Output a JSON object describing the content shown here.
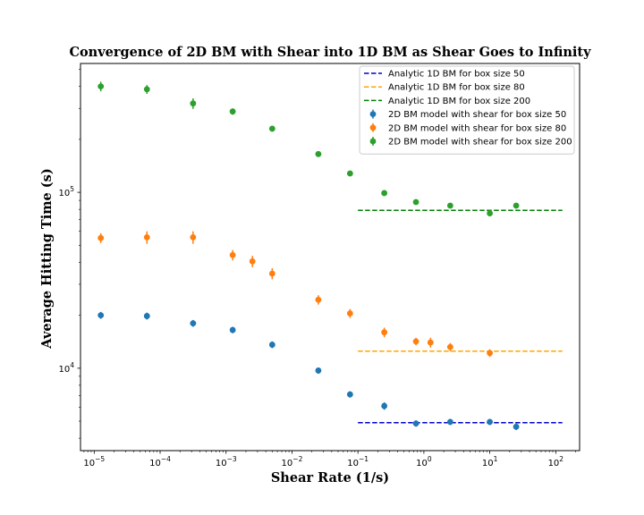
{
  "chart_data": {
    "type": "scatter",
    "title": "Convergence of 2D BM with Shear into 1D BM as Shear Goes to Infinity",
    "xlabel": "Shear Rate (1/s)",
    "ylabel": "Average Hitting Time (s)",
    "xscale": "log",
    "yscale": "log",
    "xlim": [
      6.2e-06,
      230
    ],
    "ylim": [
      3400,
      540000
    ],
    "grid": false,
    "legend_position": "upper right",
    "x_ticks": [
      {
        "value": 1e-05,
        "base": "10",
        "exp": "−5"
      },
      {
        "value": 0.0001,
        "base": "10",
        "exp": "−4"
      },
      {
        "value": 0.001,
        "base": "10",
        "exp": "−3"
      },
      {
        "value": 0.01,
        "base": "10",
        "exp": "−2"
      },
      {
        "value": 0.1,
        "base": "10",
        "exp": "−1"
      },
      {
        "value": 1,
        "base": "10",
        "exp": "0"
      },
      {
        "value": 10,
        "base": "10",
        "exp": "1"
      },
      {
        "value": 100,
        "base": "10",
        "exp": "2"
      }
    ],
    "y_ticks": [
      {
        "value": 10000,
        "base": "10",
        "exp": "4"
      },
      {
        "value": 100000,
        "base": "10",
        "exp": "5"
      }
    ],
    "reference_lines": [
      {
        "name": "Analytic 1D BM for box size 50",
        "color": "#0000cc",
        "y": 4900,
        "x_range": [
          0.1,
          126
        ]
      },
      {
        "name": "Analytic 1D BM for box size 80",
        "color": "#ffa500",
        "y": 12500,
        "x_range": [
          0.1,
          126
        ]
      },
      {
        "name": "Analytic 1D BM for box size 200",
        "color": "#008000",
        "y": 79000,
        "x_range": [
          0.1,
          126
        ]
      }
    ],
    "series": [
      {
        "name": "2D BM model with shear for box size 50",
        "color": "#1f77b4",
        "x": [
          1.26e-05,
          6.31e-05,
          0.000316,
          0.00126,
          0.00501,
          0.0251,
          0.0759,
          0.251,
          0.759,
          2.51,
          10,
          25.1
        ],
        "y": [
          20000,
          19800,
          18000,
          16500,
          13600,
          9700,
          7100,
          6100,
          4850,
          4950,
          4950,
          4650
        ],
        "err": [
          900,
          900,
          800,
          700,
          600,
          400,
          300,
          300,
          200,
          200,
          200,
          200
        ]
      },
      {
        "name": "2D BM model with shear for box size 80",
        "color": "#ff7f0e",
        "x": [
          1.26e-05,
          6.31e-05,
          0.000316,
          0.00126,
          0.00251,
          0.00501,
          0.0251,
          0.0759,
          0.251,
          0.759,
          1.26,
          2.51,
          10
        ],
        "y": [
          55000,
          55500,
          55500,
          44000,
          40500,
          34500,
          24500,
          20500,
          16000,
          14200,
          14000,
          13200,
          12200
        ],
        "err": [
          3500,
          4500,
          4500,
          3000,
          3000,
          2500,
          1500,
          1200,
          1000,
          700,
          900,
          700,
          600
        ]
      },
      {
        "name": "2D BM model with shear for box size 200",
        "color": "#2ca02c",
        "x": [
          1.26e-05,
          6.31e-05,
          0.000316,
          0.00126,
          0.00501,
          0.0251,
          0.0759,
          0.251,
          0.759,
          2.51,
          10,
          25.1
        ],
        "y": [
          400000,
          385000,
          320000,
          288000,
          230000,
          165000,
          128000,
          99000,
          88000,
          84000,
          76000,
          84000
        ],
        "err": [
          25000,
          22000,
          22000,
          12000,
          6000,
          4000,
          3000,
          3000,
          3000,
          3000,
          3000,
          3000
        ]
      }
    ]
  }
}
